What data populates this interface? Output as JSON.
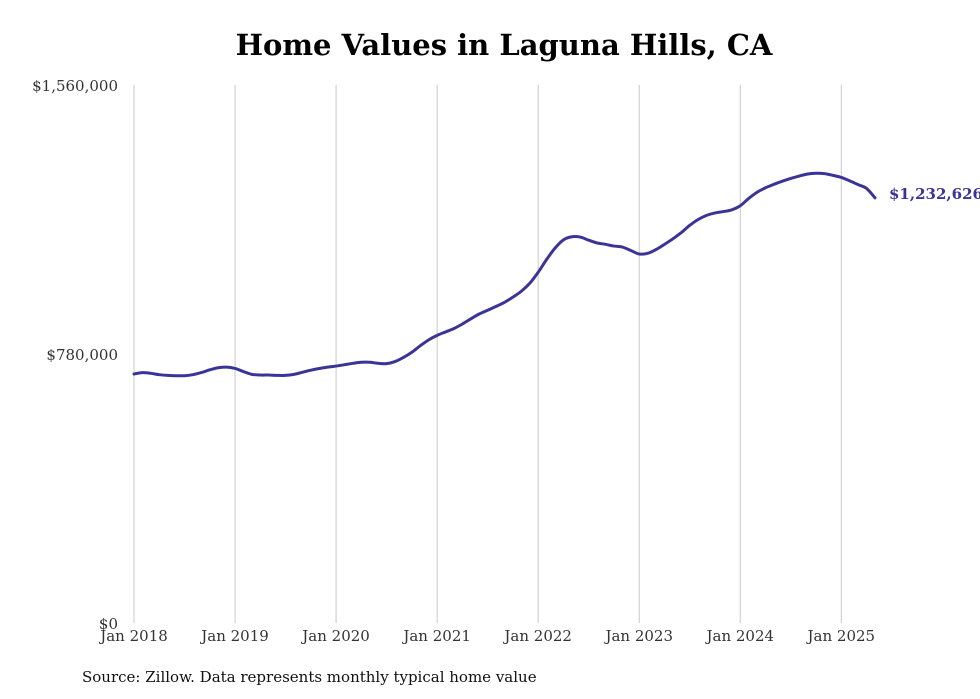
{
  "chart_data": {
    "type": "line",
    "title": "Home Values in Laguna Hills, CA",
    "xlabel": "",
    "ylabel": "",
    "x_ticks": [
      "Jan 2018",
      "Jan 2019",
      "Jan 2020",
      "Jan 2021",
      "Jan 2022",
      "Jan 2023",
      "Jan 2024",
      "Jan 2025"
    ],
    "y_ticks": [
      {
        "value": 0,
        "label": "$0"
      },
      {
        "value": 780000,
        "label": "$780,000"
      },
      {
        "value": 1560000,
        "label": "$1,560,000"
      }
    ],
    "ylim": [
      0,
      1560000
    ],
    "x_range": [
      "2018-01",
      "2025-05"
    ],
    "grid": "vertical",
    "line_color": "#3b3497",
    "end_label": "$1,232,626",
    "series": [
      {
        "x": [
          "2018-01",
          "2018-02",
          "2018-03",
          "2018-04",
          "2018-05",
          "2018-06",
          "2018-07",
          "2018-08",
          "2018-09",
          "2018-10",
          "2018-11",
          "2018-12",
          "2019-01",
          "2019-02",
          "2019-03",
          "2019-04",
          "2019-05",
          "2019-06",
          "2019-07",
          "2019-08",
          "2019-09",
          "2019-10",
          "2019-11",
          "2019-12",
          "2020-01",
          "2020-02",
          "2020-03",
          "2020-04",
          "2020-05",
          "2020-06",
          "2020-07",
          "2020-08",
          "2020-09",
          "2020-10",
          "2020-11",
          "2020-12",
          "2021-01",
          "2021-02",
          "2021-03",
          "2021-04",
          "2021-05",
          "2021-06",
          "2021-07",
          "2021-08",
          "2021-09",
          "2021-10",
          "2021-11",
          "2021-12",
          "2022-01",
          "2022-02",
          "2022-03",
          "2022-04",
          "2022-05",
          "2022-06",
          "2022-07",
          "2022-08",
          "2022-09",
          "2022-10",
          "2022-11",
          "2022-12",
          "2023-01",
          "2023-02",
          "2023-03",
          "2023-04",
          "2023-05",
          "2023-06",
          "2023-07",
          "2023-08",
          "2023-09",
          "2023-10",
          "2023-11",
          "2023-12",
          "2024-01",
          "2024-02",
          "2024-03",
          "2024-04",
          "2024-05",
          "2024-06",
          "2024-07",
          "2024-08",
          "2024-09",
          "2024-10",
          "2024-11",
          "2024-12",
          "2025-01",
          "2025-02",
          "2025-03",
          "2025-04",
          "2025-05"
        ],
        "values": [
          722000,
          726000,
          724000,
          720000,
          718000,
          717000,
          717000,
          720000,
          726000,
          734000,
          740000,
          742000,
          738000,
          729000,
          721000,
          719000,
          719000,
          718000,
          718000,
          721000,
          727000,
          733000,
          738000,
          742000,
          745000,
          749000,
          753000,
          756000,
          756000,
          753000,
          752000,
          758000,
          770000,
          785000,
          804000,
          821000,
          834000,
          844000,
          854000,
          867000,
          882000,
          896000,
          907000,
          918000,
          930000,
          945000,
          962000,
          985000,
          1017000,
          1054000,
          1087000,
          1111000,
          1120000,
          1119000,
          1110000,
          1102000,
          1098000,
          1093000,
          1090000,
          1080000,
          1070000,
          1072000,
          1083000,
          1098000,
          1114000,
          1132000,
          1153000,
          1170000,
          1182000,
          1189000,
          1193000,
          1198000,
          1210000,
          1231000,
          1249000,
          1262000,
          1272000,
          1281000,
          1289000,
          1296000,
          1302000,
          1304000,
          1303000,
          1298000,
          1292000,
          1282000,
          1271000,
          1260000,
          1232626
        ]
      }
    ]
  },
  "source": "Source: Zillow. Data represents monthly typical home value"
}
